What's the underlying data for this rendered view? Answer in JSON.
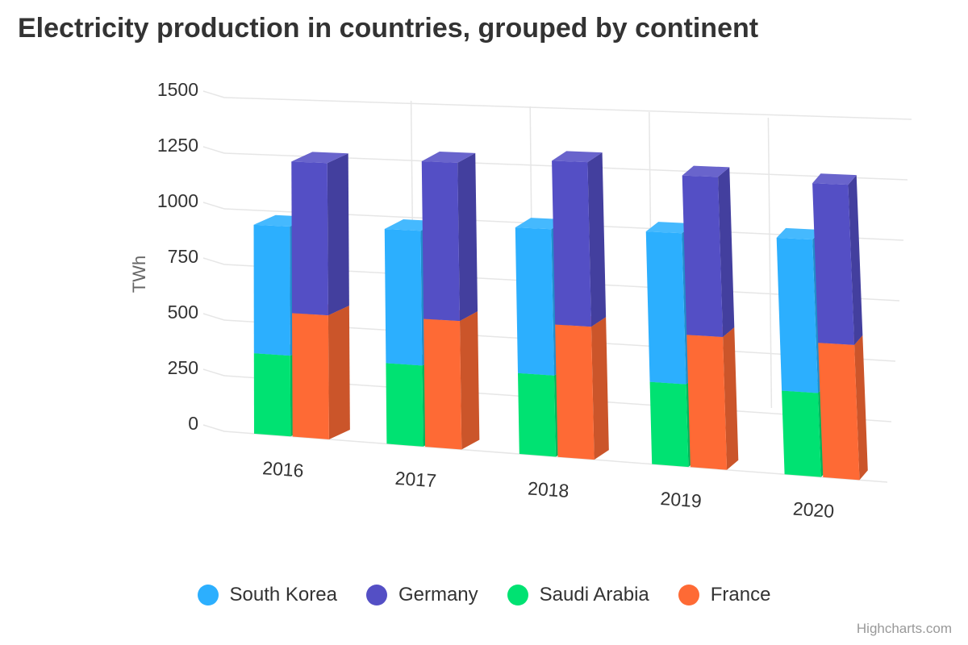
{
  "chart_data": {
    "type": "bar",
    "title": "Electricity production in countries, grouped by continent",
    "ylabel": "TWh",
    "ylim": [
      0,
      1500
    ],
    "yticks": [
      0,
      250,
      500,
      750,
      1000,
      1250,
      1500
    ],
    "categories": [
      "2016",
      "2017",
      "2018",
      "2019",
      "2020"
    ],
    "grid": true,
    "legend_position": "bottom-center",
    "stacks": [
      {
        "series": [
          "Saudi Arabia",
          "South Korea"
        ]
      },
      {
        "series": [
          "France",
          "Germany"
        ]
      }
    ],
    "series": [
      {
        "name": "South Korea",
        "color": "#2caffe",
        "stack": 0,
        "values": [
          575,
          590,
          630,
          640,
          640
        ]
      },
      {
        "name": "Germany",
        "color": "#544fc5",
        "stack": 1,
        "values": [
          675,
          690,
          705,
          675,
          665
        ]
      },
      {
        "name": "Saudi Arabia",
        "color": "#00e272",
        "stack": 0,
        "values": [
          360,
          355,
          350,
          350,
          350
        ]
      },
      {
        "name": "France",
        "color": "#fe6a35",
        "stack": 1,
        "values": [
          550,
          560,
          570,
          560,
          560
        ]
      }
    ]
  },
  "legend": {
    "items": [
      {
        "label": "South Korea",
        "color": "#2caffe"
      },
      {
        "label": "Germany",
        "color": "#544fc5"
      },
      {
        "label": "Saudi Arabia",
        "color": "#00e272"
      },
      {
        "label": "France",
        "color": "#fe6a35"
      }
    ]
  },
  "credits": "Highcharts.com"
}
